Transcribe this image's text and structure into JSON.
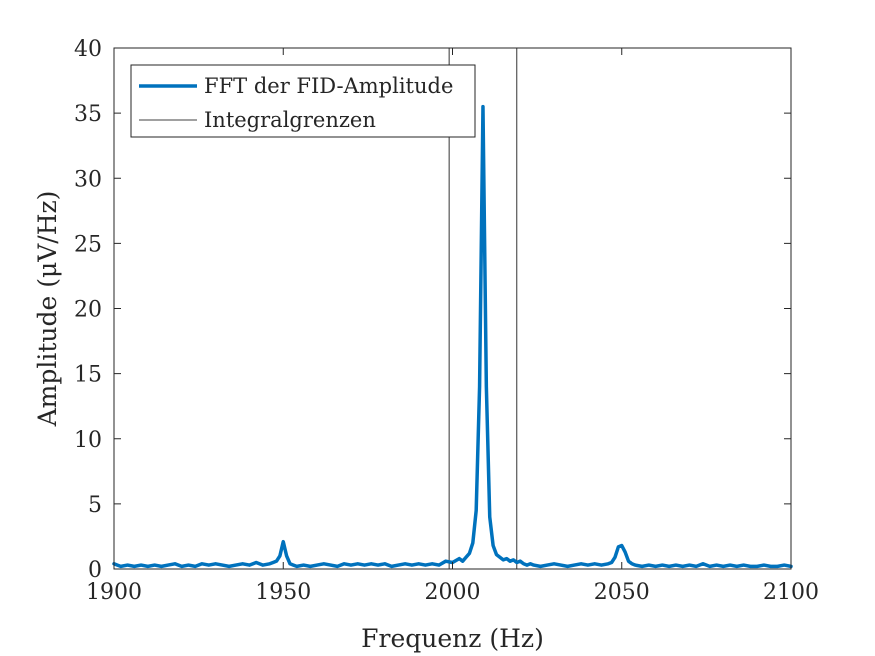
{
  "chart_data": {
    "type": "line",
    "title": "",
    "xlabel": "Frequenz (Hz)",
    "ylabel": "Amplitude (μV/Hz)",
    "xlim": [
      1900,
      2100
    ],
    "ylim": [
      0,
      40
    ],
    "xticks": [
      1900,
      1950,
      2000,
      2050,
      2100
    ],
    "yticks": [
      0,
      5,
      10,
      15,
      20,
      25,
      30,
      35,
      40
    ],
    "grid": false,
    "legend_position": "top-left",
    "series": [
      {
        "name": "FFT der FID-Amplitude",
        "color": "#0072BD",
        "style": "solid-thick",
        "points": [
          [
            1900,
            0.4
          ],
          [
            1901,
            0.3
          ],
          [
            1902,
            0.2
          ],
          [
            1904,
            0.3
          ],
          [
            1906,
            0.2
          ],
          [
            1908,
            0.3
          ],
          [
            1910,
            0.2
          ],
          [
            1912,
            0.3
          ],
          [
            1914,
            0.2
          ],
          [
            1916,
            0.3
          ],
          [
            1918,
            0.4
          ],
          [
            1920,
            0.2
          ],
          [
            1922,
            0.3
          ],
          [
            1924,
            0.2
          ],
          [
            1926,
            0.4
          ],
          [
            1928,
            0.3
          ],
          [
            1930,
            0.4
          ],
          [
            1932,
            0.3
          ],
          [
            1934,
            0.2
          ],
          [
            1936,
            0.3
          ],
          [
            1938,
            0.4
          ],
          [
            1940,
            0.3
          ],
          [
            1942,
            0.5
          ],
          [
            1944,
            0.3
          ],
          [
            1946,
            0.4
          ],
          [
            1947,
            0.5
          ],
          [
            1948,
            0.6
          ],
          [
            1949,
            1.0
          ],
          [
            1950,
            2.1
          ],
          [
            1951,
            1.0
          ],
          [
            1952,
            0.4
          ],
          [
            1953,
            0.3
          ],
          [
            1954,
            0.2
          ],
          [
            1956,
            0.3
          ],
          [
            1958,
            0.2
          ],
          [
            1960,
            0.3
          ],
          [
            1962,
            0.4
          ],
          [
            1964,
            0.3
          ],
          [
            1966,
            0.2
          ],
          [
            1968,
            0.4
          ],
          [
            1970,
            0.3
          ],
          [
            1972,
            0.4
          ],
          [
            1974,
            0.3
          ],
          [
            1976,
            0.4
          ],
          [
            1978,
            0.3
          ],
          [
            1980,
            0.4
          ],
          [
            1982,
            0.2
          ],
          [
            1984,
            0.3
          ],
          [
            1986,
            0.4
          ],
          [
            1988,
            0.3
          ],
          [
            1990,
            0.4
          ],
          [
            1992,
            0.3
          ],
          [
            1994,
            0.4
          ],
          [
            1996,
            0.3
          ],
          [
            1998,
            0.6
          ],
          [
            2000,
            0.5
          ],
          [
            2002,
            0.8
          ],
          [
            2003,
            0.6
          ],
          [
            2004,
            0.9
          ],
          [
            2005,
            1.2
          ],
          [
            2006,
            2.0
          ],
          [
            2007,
            4.5
          ],
          [
            2008,
            14.0
          ],
          [
            2009,
            35.5
          ],
          [
            2010,
            14.0
          ],
          [
            2011,
            4.0
          ],
          [
            2012,
            1.8
          ],
          [
            2013,
            1.1
          ],
          [
            2014,
            0.9
          ],
          [
            2015,
            0.7
          ],
          [
            2016,
            0.8
          ],
          [
            2017,
            0.6
          ],
          [
            2018,
            0.7
          ],
          [
            2019,
            0.5
          ],
          [
            2020,
            0.6
          ],
          [
            2021,
            0.4
          ],
          [
            2022,
            0.3
          ],
          [
            2023,
            0.4
          ],
          [
            2024,
            0.3
          ],
          [
            2026,
            0.2
          ],
          [
            2028,
            0.3
          ],
          [
            2030,
            0.4
          ],
          [
            2032,
            0.3
          ],
          [
            2034,
            0.2
          ],
          [
            2036,
            0.3
          ],
          [
            2038,
            0.4
          ],
          [
            2040,
            0.3
          ],
          [
            2042,
            0.4
          ],
          [
            2044,
            0.3
          ],
          [
            2046,
            0.4
          ],
          [
            2047,
            0.5
          ],
          [
            2048,
            0.9
          ],
          [
            2049,
            1.7
          ],
          [
            2050,
            1.8
          ],
          [
            2051,
            1.3
          ],
          [
            2052,
            0.6
          ],
          [
            2053,
            0.4
          ],
          [
            2054,
            0.3
          ],
          [
            2056,
            0.2
          ],
          [
            2058,
            0.3
          ],
          [
            2060,
            0.2
          ],
          [
            2062,
            0.3
          ],
          [
            2064,
            0.2
          ],
          [
            2066,
            0.3
          ],
          [
            2068,
            0.2
          ],
          [
            2070,
            0.3
          ],
          [
            2072,
            0.2
          ],
          [
            2074,
            0.4
          ],
          [
            2076,
            0.2
          ],
          [
            2078,
            0.3
          ],
          [
            2080,
            0.2
          ],
          [
            2082,
            0.3
          ],
          [
            2084,
            0.2
          ],
          [
            2086,
            0.3
          ],
          [
            2088,
            0.2
          ],
          [
            2090,
            0.2
          ],
          [
            2092,
            0.3
          ],
          [
            2094,
            0.2
          ],
          [
            2096,
            0.2
          ],
          [
            2098,
            0.3
          ],
          [
            2100,
            0.2
          ]
        ]
      },
      {
        "name": "Integralgrenzen",
        "color": "#000000",
        "style": "solid-thin",
        "vertical_lines_x": [
          1999,
          2019
        ]
      }
    ]
  }
}
